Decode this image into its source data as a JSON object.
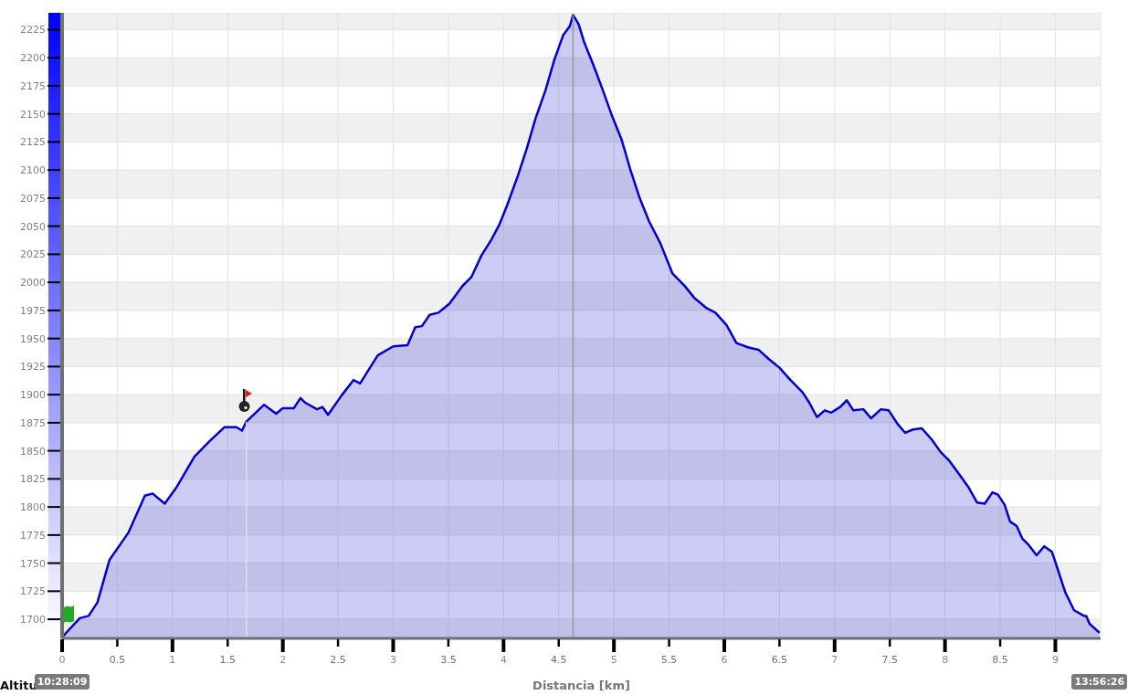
{
  "chart_data": {
    "type": "area",
    "xlabel": "Distancia [km]",
    "ylabel": "Altitu",
    "color": "#0000cc",
    "x": [
      0,
      0.16,
      0.24,
      0.32,
      0.43,
      0.6,
      0.75,
      0.82,
      0.93,
      1.04,
      1.2,
      1.34,
      1.47,
      1.58,
      1.63,
      1.67,
      1.83,
      1.94,
      2.0,
      2.1,
      2.16,
      2.2,
      2.31,
      2.36,
      2.41,
      2.53,
      2.64,
      2.7,
      2.86,
      3.0,
      3.13,
      3.2,
      3.26,
      3.33,
      3.41,
      3.51,
      3.63,
      3.71,
      3.8,
      3.89,
      3.96,
      4.03,
      4.13,
      4.21,
      4.29,
      4.38,
      4.46,
      4.54,
      4.6,
      4.63,
      4.68,
      4.73,
      4.82,
      4.9,
      4.98,
      5.07,
      5.15,
      5.23,
      5.32,
      5.42,
      5.53,
      5.64,
      5.73,
      5.84,
      5.92,
      6.02,
      6.11,
      6.22,
      6.31,
      6.4,
      6.5,
      6.6,
      6.71,
      6.77,
      6.84,
      6.91,
      6.97,
      7.05,
      7.11,
      7.17,
      7.26,
      7.33,
      7.42,
      7.49,
      7.57,
      7.64,
      7.71,
      7.79,
      7.88,
      7.96,
      8.04,
      8.13,
      8.21,
      8.29,
      8.36,
      8.43,
      8.48,
      8.54,
      8.59,
      8.65,
      8.7,
      8.76,
      8.83,
      8.9,
      8.97,
      9.02,
      9.09,
      9.17,
      9.26,
      9.28,
      9.31,
      9.4
    ],
    "values": [
      1684,
      1701,
      1703,
      1715,
      1753,
      1777,
      1810,
      1812,
      1803,
      1818,
      1845,
      1859,
      1871,
      1871,
      1868,
      1876,
      1891,
      1883,
      1888,
      1888,
      1897,
      1893,
      1887,
      1889,
      1882,
      1899,
      1913,
      1910,
      1935,
      1943,
      1944,
      1960,
      1961,
      1971,
      1973,
      1981,
      1997,
      2005,
      2024,
      2038,
      2051,
      2068,
      2095,
      2119,
      2146,
      2171,
      2198,
      2220,
      2228,
      2238,
      2230,
      2214,
      2192,
      2171,
      2149,
      2127,
      2100,
      2076,
      2054,
      2035,
      2008,
      1997,
      1986,
      1977,
      1973,
      1962,
      1946,
      1942,
      1940,
      1932,
      1924,
      1913,
      1902,
      1893,
      1880,
      1886,
      1884,
      1889,
      1895,
      1886,
      1887,
      1879,
      1887,
      1886,
      1874,
      1866,
      1869,
      1870,
      1860,
      1849,
      1841,
      1829,
      1818,
      1804,
      1803,
      1813,
      1811,
      1802,
      1787,
      1783,
      1772,
      1766,
      1757,
      1765,
      1760,
      1745,
      1724,
      1708,
      1703,
      1703,
      1696,
      1688
    ],
    "xlim": [
      0,
      9.41
    ],
    "xticks": [
      0,
      0.5,
      1,
      1.5,
      2,
      2.5,
      3,
      3.5,
      4,
      4.5,
      5,
      5.5,
      6,
      6.5,
      7,
      7.5,
      8,
      8.5,
      9
    ],
    "ylim": [
      1683,
      2240
    ],
    "yticks": [
      1700,
      1725,
      1750,
      1775,
      1800,
      1825,
      1850,
      1875,
      1900,
      1925,
      1950,
      1975,
      2000,
      2025,
      2050,
      2075,
      2100,
      2125,
      2150,
      2175,
      2200,
      2225
    ],
    "grid": true,
    "ref_lines": [
      {
        "axis": "x",
        "value": 1.67,
        "color": "#e0e0e0"
      },
      {
        "axis": "x",
        "value": 4.63,
        "color": "#9a9a9a"
      }
    ],
    "annotations": [
      "10:28:09",
      "13:56:26"
    ]
  }
}
